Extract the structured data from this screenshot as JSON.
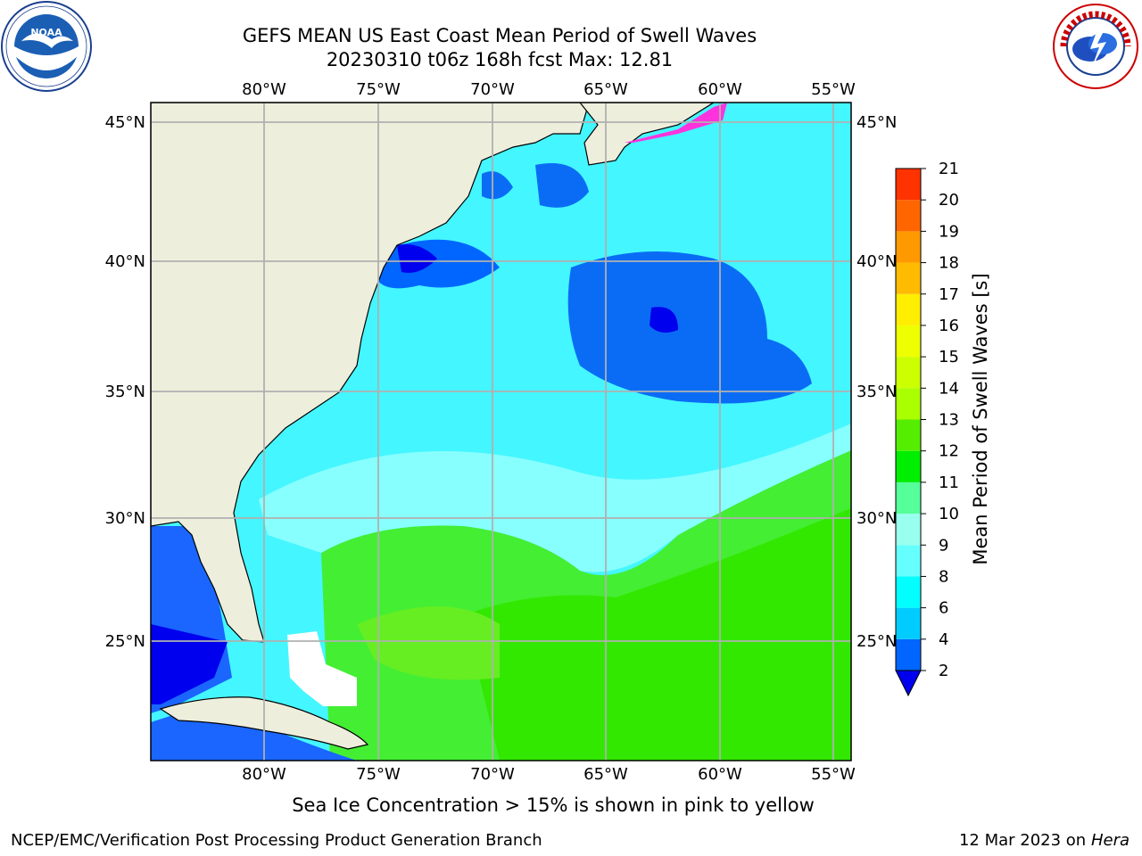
{
  "title": {
    "line1": "GEFS MEAN US East Coast Mean Period of Swell Waves",
    "line2": "20230310 t06z 168h fcst   Max: 12.81"
  },
  "logos": {
    "left": {
      "name": "NOAA",
      "icon": "noaa-logo-icon"
    },
    "right": {
      "name": "NATIONAL WEATHER SERVICE",
      "icon": "nws-logo-icon"
    }
  },
  "map": {
    "lon_labels": [
      "80°W",
      "75°W",
      "70°W",
      "65°W",
      "60°W",
      "55°W"
    ],
    "lat_labels": [
      "45°N",
      "40°N",
      "35°N",
      "30°N",
      "25°N"
    ],
    "lon_range": [
      -85,
      -54.2
    ],
    "lat_range": [
      20.5,
      45.8
    ],
    "colors": {
      "land": "#eeeedd",
      "grid": "#b0b0b0",
      "ice": "#ff33dd"
    }
  },
  "colorbar": {
    "label": "Mean Period of Swell Waves [s]",
    "ticks": [
      "2",
      "4",
      "6",
      "8",
      "9",
      "10",
      "11",
      "12",
      "13",
      "14",
      "15",
      "16",
      "17",
      "18",
      "19",
      "20",
      "21"
    ],
    "colors": [
      "#0066ff",
      "#00ccff",
      "#00ffff",
      "#66ffff",
      "#99ffee",
      "#55ff99",
      "#00ee00",
      "#55ee00",
      "#aaff00",
      "#ccff00",
      "#eeff00",
      "#ffee00",
      "#ffbb00",
      "#ff9900",
      "#ff6600",
      "#ff3300",
      "#ff0000"
    ],
    "under_color": "#0000ee"
  },
  "footer": {
    "ice_note": "Sea Ice Concentration > 15% is shown in pink to yellow",
    "branch": "NCEP/EMC/Verification Post Processing Product Generation Branch",
    "date": "12 Mar 2023 on",
    "machine": "Hera"
  }
}
